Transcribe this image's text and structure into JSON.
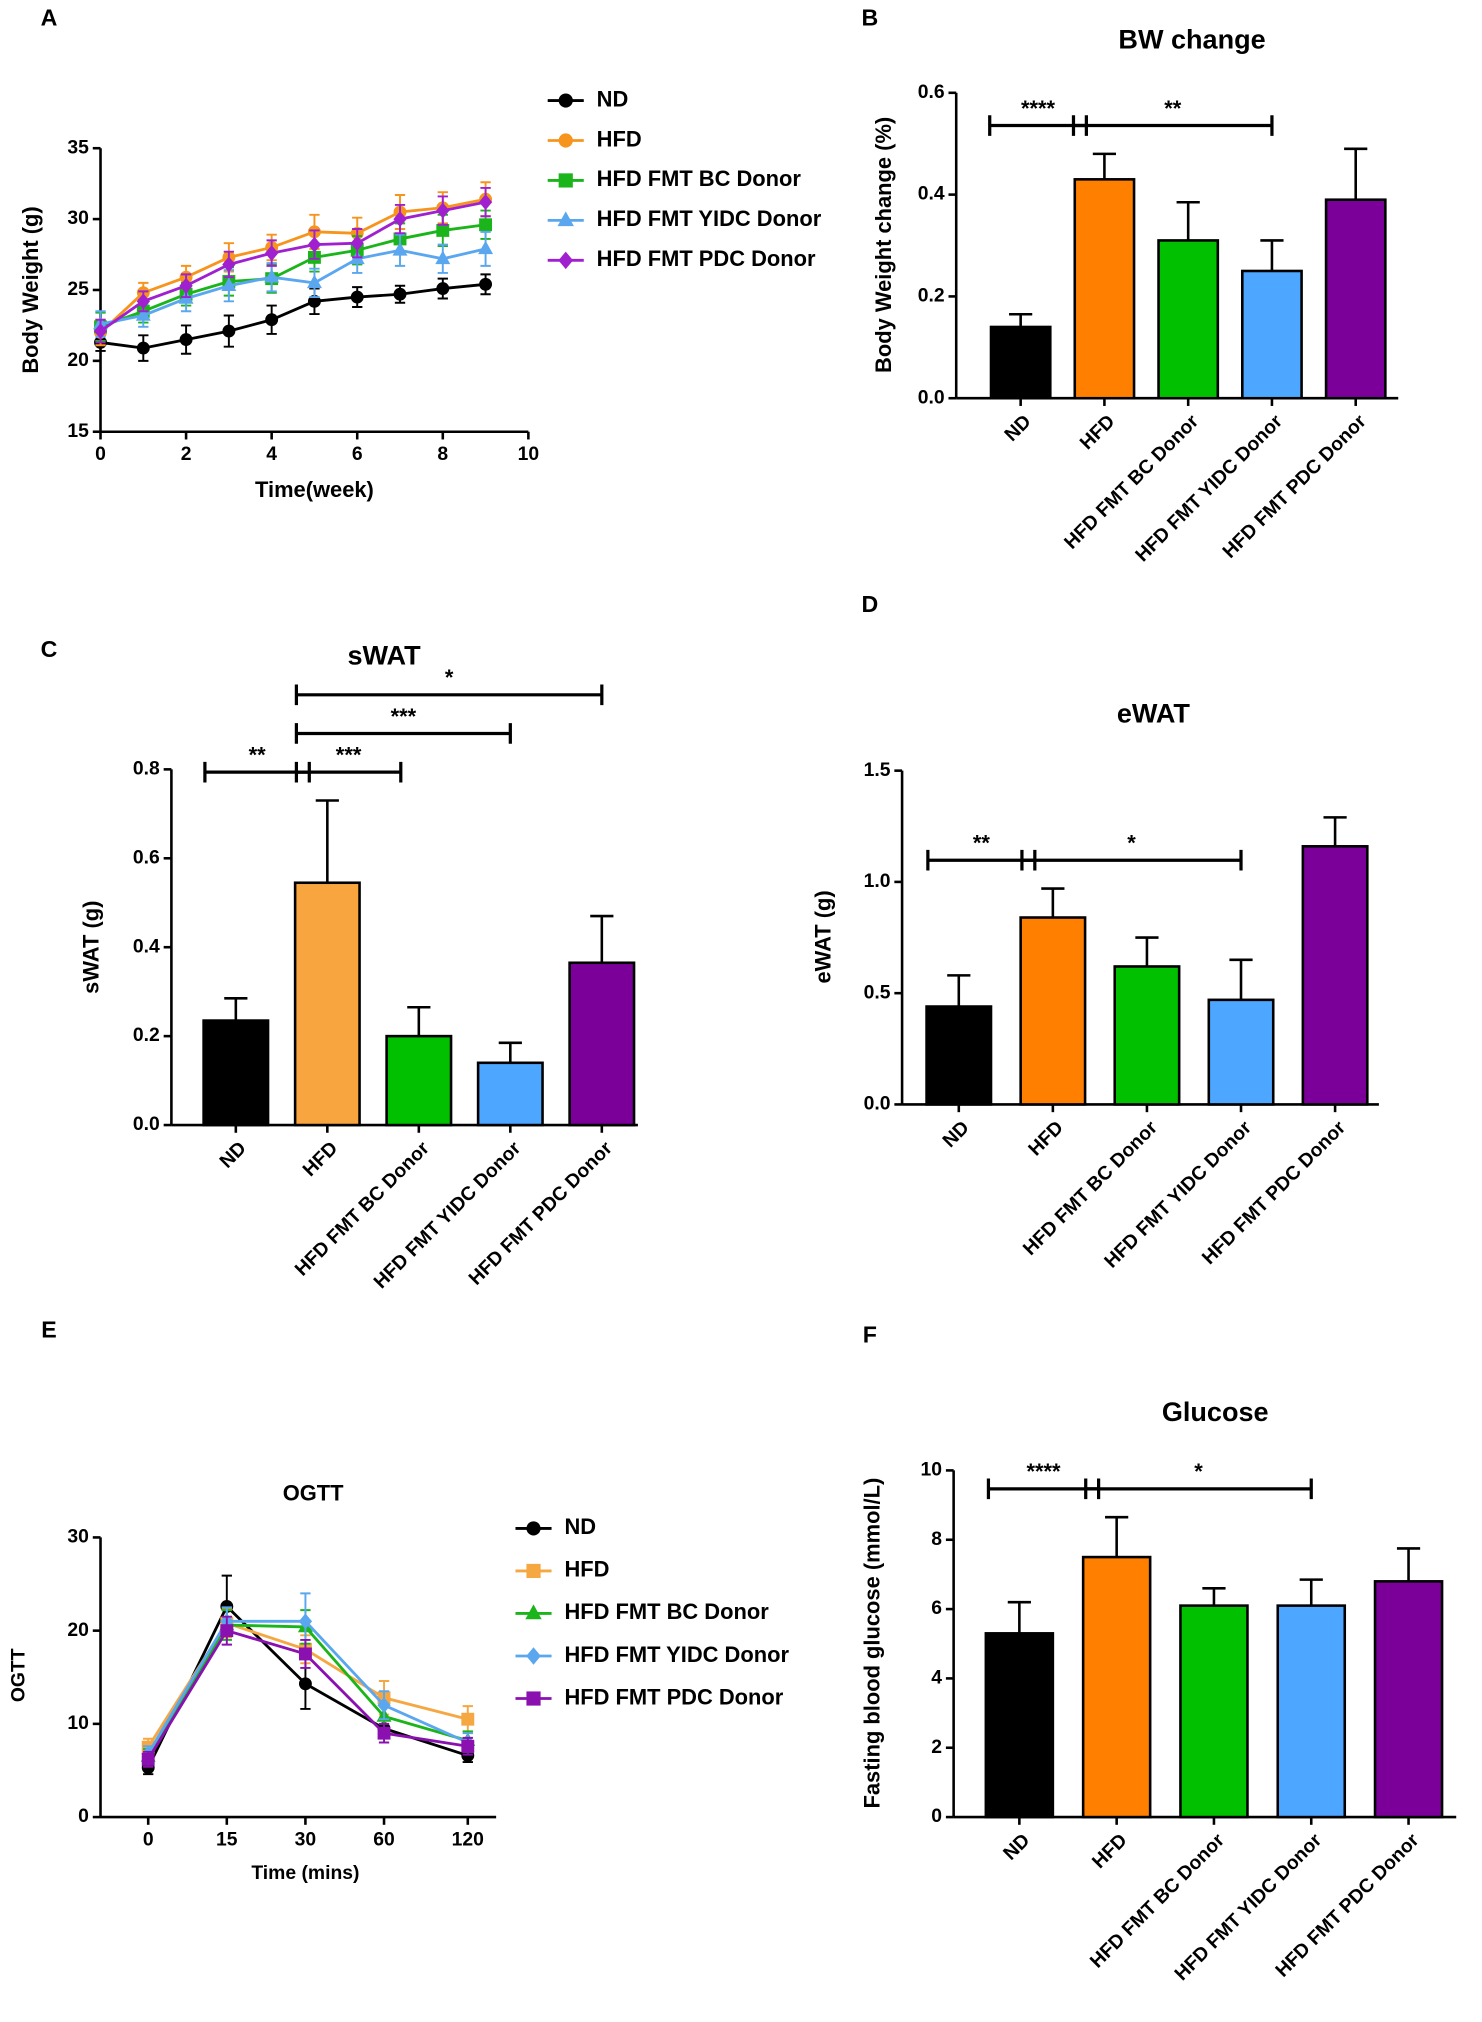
{
  "chart_data": [
    {
      "type": "line",
      "panel": "A",
      "xlabel": "Time(week)",
      "ylabel": "Body Weight (g)",
      "x": [
        0,
        1,
        2,
        3,
        4,
        5,
        6,
        7,
        8,
        9
      ],
      "xlim": [
        0,
        10
      ],
      "xticks": [
        0,
        2,
        4,
        6,
        8,
        10
      ],
      "ylim": [
        15,
        35
      ],
      "yticks": [
        15,
        20,
        25,
        30,
        35
      ],
      "series": [
        {
          "name": "ND",
          "color": "#000000",
          "marker": "circle",
          "values": [
            21.3,
            20.9,
            21.5,
            22.1,
            22.9,
            24.2,
            24.5,
            24.7,
            25.1,
            25.4
          ],
          "errors": [
            0.6,
            0.9,
            1.0,
            1.1,
            1.0,
            0.9,
            0.7,
            0.6,
            0.7,
            0.7
          ]
        },
        {
          "name": "HFD",
          "color": "#f7941d",
          "marker": "circle",
          "values": [
            22.0,
            24.8,
            25.9,
            27.3,
            28.0,
            29.1,
            29.0,
            30.5,
            30.8,
            31.4
          ],
          "errors": [
            0.9,
            0.7,
            0.8,
            1.0,
            0.9,
            1.2,
            1.1,
            1.2,
            1.1,
            1.2
          ]
        },
        {
          "name": "HFD FMT BC Donor",
          "color": "#1bb51b",
          "marker": "square",
          "values": [
            22.4,
            23.5,
            24.7,
            25.6,
            25.8,
            27.3,
            27.8,
            28.6,
            29.2,
            29.6
          ],
          "errors": [
            1.0,
            0.8,
            0.8,
            1.0,
            1.0,
            1.0,
            1.0,
            1.1,
            1.1,
            1.0
          ]
        },
        {
          "name": "HFD FMT YIDC Donor",
          "color": "#5aa7f0",
          "marker": "triangle",
          "values": [
            22.6,
            23.2,
            24.4,
            25.3,
            25.9,
            25.5,
            27.2,
            27.8,
            27.2,
            27.9
          ],
          "errors": [
            0.9,
            0.8,
            0.9,
            1.1,
            1.0,
            1.0,
            1.0,
            1.1,
            1.0,
            1.2
          ]
        },
        {
          "name": "HFD FMT PDC Donor",
          "color": "#a020d0",
          "marker": "diamond",
          "values": [
            22.1,
            24.2,
            25.3,
            26.8,
            27.6,
            28.2,
            28.3,
            30.0,
            30.6,
            31.2
          ],
          "errors": [
            0.8,
            0.7,
            0.8,
            0.9,
            0.9,
            1.0,
            1.0,
            1.0,
            1.0,
            1.0
          ]
        }
      ]
    },
    {
      "type": "bar",
      "panel": "B",
      "title": "BW change",
      "ylabel": "Body Weight change (%)",
      "categories": [
        "ND",
        "HFD",
        "HFD FMT BC Donor",
        "HFD FMT YIDC Donor",
        "HFD FMT PDC Donor"
      ],
      "values": [
        0.14,
        0.43,
        0.31,
        0.25,
        0.39
      ],
      "errors": [
        0.025,
        0.05,
        0.075,
        0.06,
        0.1
      ],
      "colors": [
        "#000000",
        "#ff7f00",
        "#00c000",
        "#4da6ff",
        "#7b0099"
      ],
      "ylim": [
        0,
        0.6
      ],
      "yticks": [
        {
          "value": 0,
          "label": "0.0"
        },
        0.2,
        0.4,
        0.6
      ],
      "annotations": [
        {
          "label": "****",
          "groups": [
            "ND",
            "HFD"
          ]
        },
        {
          "label": "**",
          "groups": [
            "HFD",
            "HFD FMT YIDC Donor"
          ]
        }
      ]
    },
    {
      "type": "bar",
      "panel": "C",
      "title": "sWAT",
      "ylabel": "sWAT (g)",
      "categories": [
        "ND",
        "HFD",
        "HFD FMT BC Donor",
        "HFD FMT YIDC Donor",
        "HFD FMT PDC Donor"
      ],
      "values": [
        0.235,
        0.545,
        0.2,
        0.14,
        0.365
      ],
      "errors": [
        0.05,
        0.185,
        0.065,
        0.045,
        0.105
      ],
      "colors": [
        "#000000",
        "#f8a53f",
        "#00c000",
        "#4da6ff",
        "#7b0099"
      ],
      "ylim": [
        0,
        0.8
      ],
      "yticks": [
        {
          "value": 0,
          "label": "0.0"
        },
        0.2,
        0.4,
        0.6,
        0.8
      ],
      "annotations": [
        {
          "label": "**",
          "groups": [
            "ND",
            "HFD"
          ]
        },
        {
          "label": "***",
          "groups": [
            "HFD",
            "HFD FMT BC Donor"
          ]
        },
        {
          "label": "***",
          "groups": [
            "HFD",
            "HFD FMT YIDC Donor"
          ]
        },
        {
          "label": "*",
          "groups": [
            "HFD",
            "HFD FMT PDC Donor"
          ]
        }
      ]
    },
    {
      "type": "bar",
      "panel": "D",
      "title": "eWAT",
      "ylabel": "eWAT (g)",
      "categories": [
        "ND",
        "HFD",
        "HFD FMT BC Donor",
        "HFD FMT YIDC Donor",
        "HFD FMT PDC Donor"
      ],
      "values": [
        0.44,
        0.84,
        0.62,
        0.47,
        1.16
      ],
      "errors": [
        0.14,
        0.13,
        0.13,
        0.18,
        0.13
      ],
      "colors": [
        "#000000",
        "#ff7f00",
        "#00c000",
        "#4da6ff",
        "#7b0099"
      ],
      "ylim": [
        0,
        1.5
      ],
      "yticks": [
        {
          "value": 0,
          "label": "0.0"
        },
        0.5,
        {
          "value": 1,
          "label": "1.0"
        },
        1.5
      ],
      "annotations": [
        {
          "label": "**",
          "groups": [
            "ND",
            "HFD"
          ]
        },
        {
          "label": "*",
          "groups": [
            "HFD",
            "HFD FMT YIDC Donor"
          ]
        }
      ]
    },
    {
      "type": "line",
      "panel": "E",
      "title": "OGTT",
      "xlabel": "Time (mins)",
      "ylabel": "OGTT",
      "categories": [
        "0",
        "15",
        "30",
        "60",
        "120"
      ],
      "ylim": [
        0,
        30
      ],
      "yticks": [
        0,
        10,
        20,
        30
      ],
      "series": [
        {
          "name": "ND",
          "color": "#000000",
          "marker": "circle",
          "values": [
            5.3,
            22.6,
            14.3,
            9.5,
            6.6
          ],
          "errors": [
            0.7,
            3.3,
            2.7,
            1.0,
            0.7
          ]
        },
        {
          "name": "HFD",
          "color": "#f5a742",
          "marker": "square",
          "values": [
            7.5,
            20.8,
            18.0,
            12.8,
            10.5
          ],
          "errors": [
            0.9,
            1.5,
            1.5,
            1.8,
            1.4
          ]
        },
        {
          "name": "HFD FMT BC Donor",
          "color": "#1bb51b",
          "marker": "triangle",
          "values": [
            6.5,
            20.6,
            20.4,
            10.8,
            8.2
          ],
          "errors": [
            0.8,
            1.6,
            1.8,
            1.3,
            1.0
          ]
        },
        {
          "name": "HFD FMT YIDC Donor",
          "color": "#5aa7f0",
          "marker": "diamond",
          "values": [
            6.8,
            21.0,
            21.0,
            12.0,
            8.0
          ],
          "errors": [
            0.8,
            1.5,
            3.0,
            1.5,
            1.0
          ]
        },
        {
          "name": "HFD FMT PDC Donor",
          "color": "#8a10b0",
          "marker": "square",
          "values": [
            6.2,
            20.0,
            17.5,
            9.0,
            7.6
          ],
          "errors": [
            0.8,
            1.5,
            1.5,
            1.0,
            0.9
          ]
        }
      ]
    },
    {
      "type": "bar",
      "panel": "F",
      "title": "Glucose",
      "ylabel": "Fasting blood glucose (mmol/L)",
      "categories": [
        "ND",
        "HFD",
        "HFD FMT BC Donor",
        "HFD FMT YIDC Donor",
        "HFD FMT PDC Donor"
      ],
      "values": [
        5.3,
        7.5,
        6.1,
        6.1,
        6.8
      ],
      "errors": [
        0.9,
        1.15,
        0.5,
        0.75,
        0.95
      ],
      "colors": [
        "#000000",
        "#ff7f00",
        "#00c000",
        "#4da6ff",
        "#7b0099"
      ],
      "ylim": [
        0,
        10
      ],
      "yticks": [
        0,
        2,
        4,
        6,
        8,
        10
      ],
      "annotations": [
        {
          "label": "****",
          "groups": [
            "ND",
            "HFD"
          ]
        },
        {
          "label": "*",
          "groups": [
            "HFD",
            "HFD FMT YIDC Donor"
          ]
        }
      ]
    }
  ]
}
